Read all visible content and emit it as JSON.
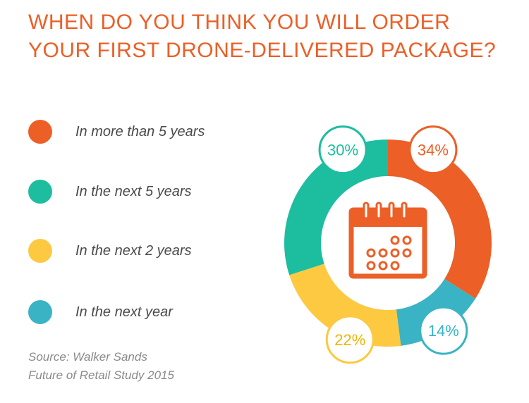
{
  "title": {
    "line1": "WHEN DO YOU THINK YOU WILL ORDER",
    "line2": "YOUR FIRST DRONE-DELIVERED PACKAGE?"
  },
  "source": {
    "line1": "Source: Walker Sands",
    "line2": "Future of Retail Study 2015"
  },
  "icons": {
    "center": "calendar-icon"
  },
  "chart_data": {
    "type": "pie",
    "variant": "donut",
    "start": "top, clockwise",
    "categories": [
      "In more than 5 years",
      "In the next year",
      "In the next 2 years",
      "In the next 5 years"
    ],
    "values": [
      34,
      14,
      22,
      30
    ],
    "labels": [
      "34%",
      "14%",
      "22%",
      "30%"
    ],
    "colors": [
      "#ec5f27",
      "#3ab3c4",
      "#fcc940",
      "#1dbda0"
    ],
    "legend": {
      "placement": "left",
      "entries": [
        {
          "label": "In more than 5 years",
          "color": "#ec5f27"
        },
        {
          "label": "In the next 5 years",
          "color": "#1dbda0"
        },
        {
          "label": "In the next 2 years",
          "color": "#fcc940"
        },
        {
          "label": "In the next year",
          "color": "#3ab3c4"
        }
      ]
    }
  }
}
